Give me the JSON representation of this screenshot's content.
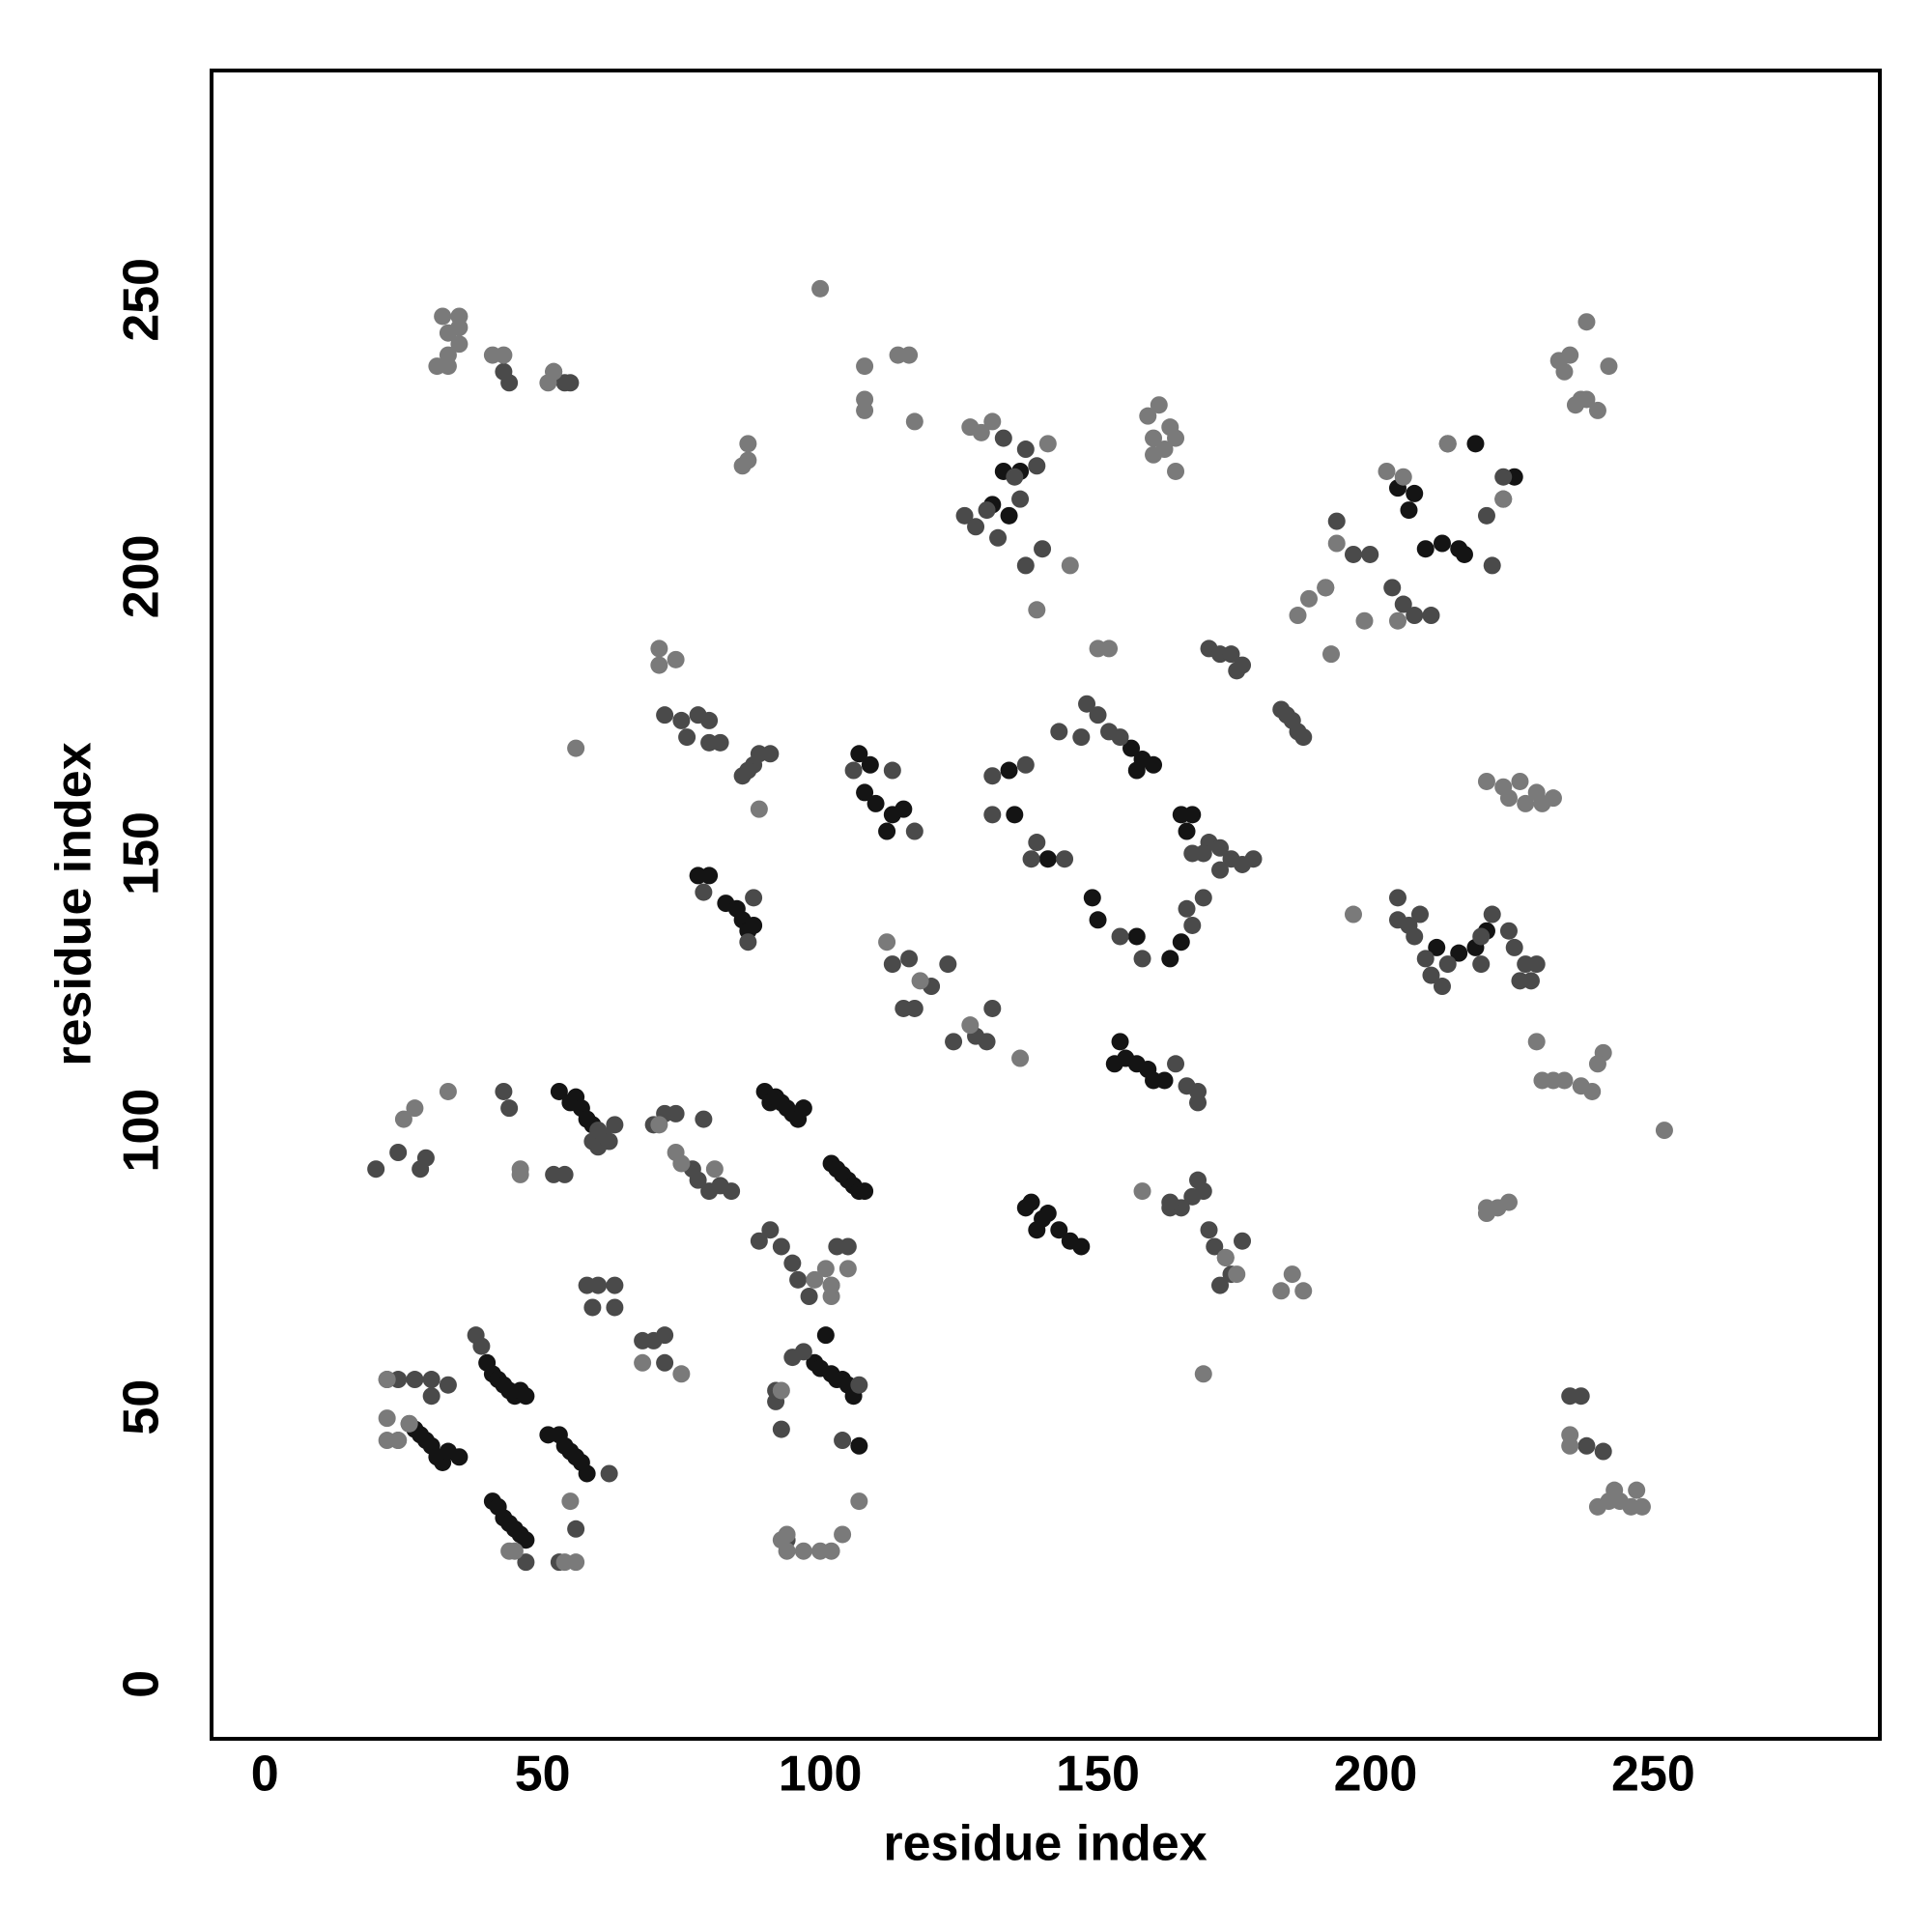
{
  "chart_data": {
    "type": "scatter",
    "xlabel": "residue index",
    "ylabel": "residue index",
    "xlim": [
      -9.6,
      290.8
    ],
    "ylim": [
      -9.9,
      291.4
    ],
    "xticks": [
      0,
      50,
      100,
      150,
      200,
      250
    ],
    "yticks": [
      0,
      50,
      100,
      150,
      200,
      250
    ],
    "series": [
      {
        "color": "#141414",
        "x": [
          40,
          41,
          42,
          43,
          44,
          45,
          46,
          47,
          41,
          42,
          43,
          44,
          45,
          46,
          47,
          26,
          27,
          28,
          29,
          30,
          31,
          32,
          33,
          35,
          51,
          53,
          54,
          55,
          56,
          57,
          58,
          90,
          91,
          92,
          93,
          94,
          95,
          96,
          97,
          102,
          103,
          104,
          105,
          106,
          107,
          108,
          99,
          100,
          101,
          102,
          103,
          104,
          105,
          106,
          53,
          55,
          56,
          57,
          58,
          59,
          60,
          156,
          157,
          158,
          160,
          165,
          166,
          167,
          149,
          150,
          157,
          163,
          165,
          134,
          135,
          141,
          153,
          154,
          155,
          157,
          159,
          160,
          162,
          137,
          138,
          139,
          140,
          141,
          143,
          145,
          147,
          78,
          80,
          83,
          85,
          86,
          87,
          88,
          107,
          109,
          108,
          110,
          113,
          112,
          115,
          131,
          133,
          136,
          134,
          209,
          212,
          215,
          216,
          204,
          206,
          207,
          213,
          218,
          225,
          211,
          215,
          218,
          220,
          107
        ],
        "values": [
          58,
          56,
          55,
          54,
          53,
          52,
          53,
          52,
          33,
          32,
          30,
          29,
          28,
          27,
          26,
          47,
          46,
          45,
          44,
          43,
          41,
          40,
          42,
          41,
          45,
          45,
          43,
          42,
          41,
          40,
          38,
          107,
          105,
          106,
          105,
          104,
          103,
          102,
          104,
          94,
          93,
          92,
          91,
          90,
          89,
          89,
          58,
          57,
          63,
          56,
          55,
          55,
          54,
          52,
          107,
          105,
          106,
          104,
          102,
          101,
          100,
          169,
          165,
          167,
          166,
          157,
          154,
          157,
          142,
          138,
          135,
          131,
          134,
          165,
          157,
          149,
          112,
          116,
          113,
          112,
          111,
          109,
          109,
          86,
          87,
          82,
          84,
          85,
          82,
          80,
          79,
          146,
          146,
          141,
          140,
          138,
          136,
          137,
          168,
          166,
          161,
          159,
          157,
          154,
          158,
          213,
          219,
          219,
          211,
          205,
          206,
          205,
          204,
          216,
          212,
          215,
          224,
          224,
          218,
          133,
          132,
          133,
          136,
          43
        ]
      },
      {
        "color": "#4a4a4a",
        "x": [
          43,
          44,
          52,
          54,
          55,
          133,
          135,
          137,
          136,
          139,
          137,
          140,
          126,
          128,
          130,
          132,
          148,
          150,
          152,
          154,
          147,
          143,
          137,
          131,
          131,
          139,
          144,
          138,
          154,
          158,
          166,
          167,
          169,
          170,
          172,
          174,
          176,
          172,
          178,
          167,
          169,
          170,
          172,
          174,
          176,
          175,
          183,
          185,
          186,
          187,
          184,
          86,
          88,
          89,
          91,
          87,
          106,
          113,
          117,
          72,
          75,
          78,
          80,
          76,
          80,
          82,
          79,
          87,
          88,
          113,
          116,
          120,
          123,
          115,
          117,
          124,
          128,
          131,
          130,
          204,
          207,
          209,
          210,
          213,
          219,
          221,
          219,
          224,
          225,
          227,
          228,
          226,
          229,
          212,
          204,
          206,
          208,
          223,
          220,
          164,
          166,
          168,
          168,
          165,
          167,
          168,
          169,
          170,
          171,
          173,
          174,
          172,
          176,
          163,
          163,
          20,
          24,
          28,
          29,
          59,
          60,
          61,
          62,
          63,
          60,
          70,
          72,
          74,
          79,
          77,
          78,
          80,
          82,
          84,
          89,
          91,
          93,
          95,
          96,
          98,
          103,
          105,
          92,
          95,
          97,
          104,
          107,
          58,
          59,
          60,
          63,
          63,
          68,
          70,
          72,
          72,
          22,
          24,
          27,
          30,
          33,
          30,
          38,
          39,
          47,
          62,
          56,
          53,
          43,
          44,
          52,
          54,
          193,
          196,
          199,
          191,
          203,
          205,
          207,
          210,
          221,
          223,
          235,
          237,
          238,
          241,
          92,
          93,
          94
        ],
        "values": [
          237,
          235,
          237,
          235,
          235,
          225,
          218,
          223,
          214,
          220,
          202,
          205,
          211,
          209,
          212,
          207,
          177,
          175,
          172,
          171,
          171,
          172,
          166,
          164,
          157,
          152,
          149,
          149,
          135,
          131,
          140,
          137,
          142,
          152,
          151,
          149,
          148,
          147,
          149,
          150,
          150,
          187,
          186,
          186,
          184,
          183,
          176,
          174,
          172,
          171,
          175,
          164,
          166,
          168,
          168,
          165,
          165,
          165,
          154,
          175,
          174,
          175,
          174,
          171,
          170,
          170,
          143,
          134,
          142,
          130,
          131,
          126,
          130,
          122,
          122,
          116,
          117,
          122,
          116,
          138,
          135,
          131,
          128,
          130,
          135,
          139,
          130,
          136,
          133,
          130,
          127,
          127,
          130,
          126,
          142,
          137,
          139,
          214,
          211,
          112,
          108,
          107,
          105,
          86,
          88,
          91,
          89,
          82,
          79,
          77,
          74,
          72,
          80,
          86,
          87,
          93,
          96,
          93,
          95,
          98,
          97,
          99,
          98,
          101,
          100,
          101,
          103,
          103,
          102,
          93,
          91,
          89,
          90,
          89,
          80,
          82,
          79,
          76,
          73,
          70,
          79,
          79,
          53,
          59,
          60,
          44,
          54,
          72,
          68,
          72,
          72,
          68,
          62,
          62,
          63,
          58,
          55,
          55,
          55,
          55,
          54,
          52,
          63,
          61,
          22,
          38,
          28,
          22,
          107,
          104,
          92,
          92,
          210,
          204,
          204,
          198,
          198,
          195,
          193,
          193,
          202,
          218,
          52,
          52,
          43,
          42,
          51,
          46,
          26
        ]
      },
      {
        "color": "#7a7a7a",
        "x": [
          32,
          33,
          35,
          33,
          35,
          31,
          33,
          35,
          41,
          43,
          52,
          51,
          100,
          108,
          108,
          108,
          114,
          116,
          117,
          87,
          87,
          86,
          127,
          129,
          131,
          141,
          145,
          139,
          159,
          161,
          163,
          160,
          162,
          164,
          164,
          160,
          238,
          242,
          235,
          233,
          234,
          236,
          238,
          240,
          237,
          202,
          205,
          213,
          223,
          193,
          191,
          188,
          186,
          192,
          198,
          204,
          150,
          152,
          71,
          71,
          74,
          56,
          89,
          112,
          118,
          127,
          136,
          196,
          220,
          223,
          226,
          229,
          232,
          224,
          227,
          230,
          229,
          230,
          232,
          234,
          237,
          239,
          241,
          240,
          252,
          173,
          175,
          183,
          185,
          187,
          169,
          158,
          220,
          222,
          224,
          220,
          22,
          25,
          27,
          33,
          46,
          46,
          71,
          74,
          75,
          81,
          99,
          102,
          101,
          102,
          105,
          107,
          68,
          75,
          22,
          22,
          24,
          26,
          93,
          94,
          93,
          94,
          97,
          100,
          102,
          104,
          44,
          45,
          55,
          56,
          54,
          235,
          235,
          240,
          242,
          243,
          244,
          246,
          247,
          248,
          24,
          102
        ],
        "values": [
          247,
          244,
          247,
          240,
          242,
          238,
          238,
          245,
          240,
          240,
          237,
          235,
          252,
          238,
          232,
          230,
          240,
          240,
          228,
          224,
          221,
          220,
          227,
          226,
          228,
          224,
          202,
          194,
          229,
          231,
          227,
          225,
          223,
          225,
          219,
          222,
          246,
          238,
          240,
          239,
          237,
          231,
          232,
          230,
          232,
          219,
          218,
          224,
          214,
          206,
          198,
          196,
          193,
          186,
          192,
          192,
          187,
          187,
          187,
          184,
          185,
          169,
          158,
          134,
          127,
          119,
          113,
          139,
          163,
          162,
          163,
          161,
          160,
          160,
          159,
          159,
          116,
          109,
          109,
          109,
          108,
          107,
          114,
          112,
          100,
          77,
          74,
          71,
          74,
          71,
          56,
          89,
          86,
          86,
          87,
          85,
          48,
          102,
          104,
          107,
          93,
          92,
          101,
          96,
          94,
          93,
          73,
          70,
          75,
          72,
          75,
          33,
          58,
          56,
          44,
          55,
          44,
          47,
          53,
          27,
          26,
          24,
          24,
          24,
          24,
          27,
          24,
          24,
          33,
          22,
          22,
          45,
          43,
          32,
          33,
          35,
          33,
          32,
          35,
          32,
          44,
          72
        ]
      }
    ]
  }
}
